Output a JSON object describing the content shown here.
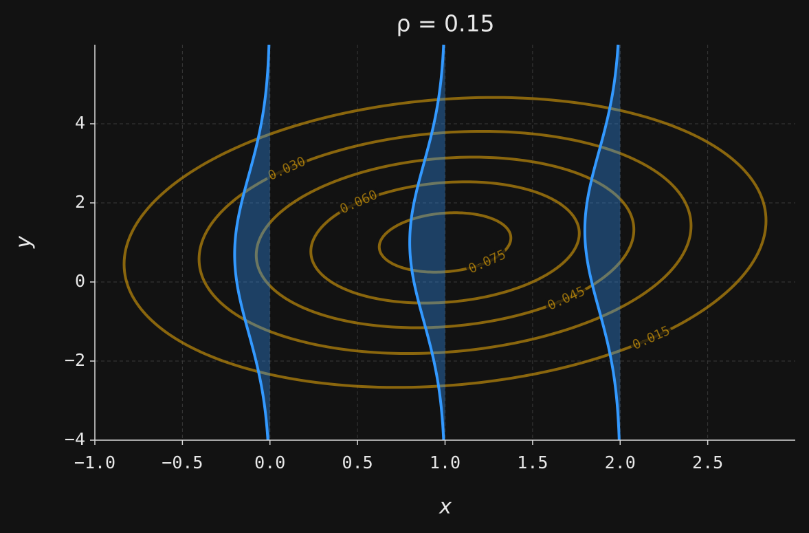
{
  "chart_data": {
    "type": "contour",
    "title": "ρ = 0.15",
    "xlabel": "x",
    "ylabel": "y",
    "mean": [
      1,
      1
    ],
    "sigma": [
      1,
      2
    ],
    "rho": 0.15,
    "levels": [
      {
        "value": 0.015,
        "label": "0.015"
      },
      {
        "value": 0.03,
        "label": "0.030"
      },
      {
        "value": 0.045,
        "label": "0.045"
      },
      {
        "value": 0.06,
        "label": "0.060"
      },
      {
        "value": 0.075,
        "label": "0.075"
      }
    ],
    "slices": [
      0,
      1,
      2
    ],
    "contour_color": "#b8860b",
    "slice_color": "#3399ff",
    "xlim": [
      -1,
      3
    ],
    "ylim": [
      -4,
      6
    ],
    "xticks": [
      {
        "value": -1,
        "label": "−1.0"
      },
      {
        "value": -0.5,
        "label": "−0.5"
      },
      {
        "value": 0,
        "label": "0.0"
      },
      {
        "value": 0.5,
        "label": "0.5"
      },
      {
        "value": 1,
        "label": "1.0"
      },
      {
        "value": 1.5,
        "label": "1.5"
      },
      {
        "value": 2,
        "label": "2.0"
      },
      {
        "value": 2.5,
        "label": "2.5"
      }
    ],
    "yticks": [
      {
        "value": -4,
        "label": "−4"
      },
      {
        "value": -2,
        "label": "−2"
      },
      0,
      2,
      4
    ],
    "grid": true
  }
}
